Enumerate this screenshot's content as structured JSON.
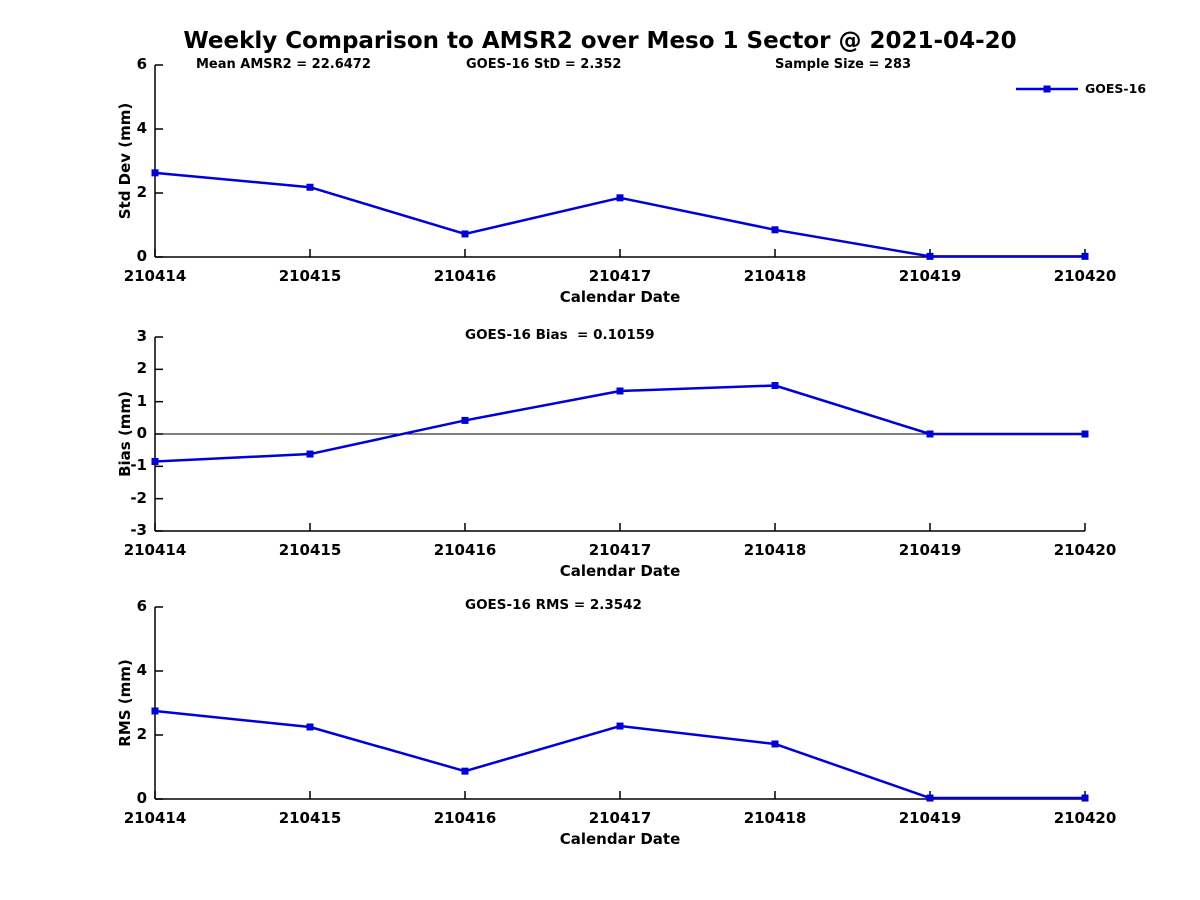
{
  "title": "Weekly Comparison to AMSR2 over Meso 1 Sector @ 2021-04-20",
  "header_stats": {
    "mean_amsr2": "Mean AMSR2 = 22.6472",
    "goes16_std": "GOES-16 StD = 2.352",
    "sample_size": "Sample Size = 283"
  },
  "legend": {
    "label": "GOES-16",
    "position": "top-right"
  },
  "colors": {
    "series": "#0000DD",
    "axis": "#000000",
    "text": "#000000",
    "background": "#ffffff"
  },
  "chart_data": [
    {
      "type": "line",
      "title": "",
      "xlabel": "Calendar Date",
      "ylabel": "Std Dev (mm)",
      "categories": [
        "210414",
        "210415",
        "210416",
        "210417",
        "210418",
        "210419",
        "210420"
      ],
      "series": [
        {
          "name": "GOES-16",
          "values": [
            2.63,
            2.18,
            0.72,
            1.85,
            0.85,
            0.02,
            0.02
          ]
        }
      ],
      "ylim": [
        0,
        6
      ],
      "yticks": [
        0,
        2,
        4,
        6
      ],
      "grid": false,
      "zero_line": false,
      "marker": "square"
    },
    {
      "type": "line",
      "title": "GOES-16 Bias  = 0.10159",
      "xlabel": "Calendar Date",
      "ylabel": "Bias (mm)",
      "categories": [
        "210414",
        "210415",
        "210416",
        "210417",
        "210418",
        "210419",
        "210420"
      ],
      "series": [
        {
          "name": "GOES-16",
          "values": [
            -0.85,
            -0.62,
            0.42,
            1.33,
            1.5,
            0.0,
            0.0
          ]
        }
      ],
      "ylim": [
        -3,
        3
      ],
      "yticks": [
        -3,
        -2,
        -1,
        0,
        1,
        2,
        3
      ],
      "grid": false,
      "zero_line": true,
      "marker": "square"
    },
    {
      "type": "line",
      "title": "GOES-16 RMS = 2.3542",
      "xlabel": "Calendar Date",
      "ylabel": "RMS (mm)",
      "categories": [
        "210414",
        "210415",
        "210416",
        "210417",
        "210418",
        "210419",
        "210420"
      ],
      "series": [
        {
          "name": "GOES-16",
          "values": [
            2.75,
            2.25,
            0.87,
            2.28,
            1.72,
            0.03,
            0.03
          ]
        }
      ],
      "ylim": [
        0,
        6
      ],
      "yticks": [
        0,
        2,
        4,
        6
      ],
      "grid": false,
      "zero_line": false,
      "marker": "square"
    }
  ]
}
